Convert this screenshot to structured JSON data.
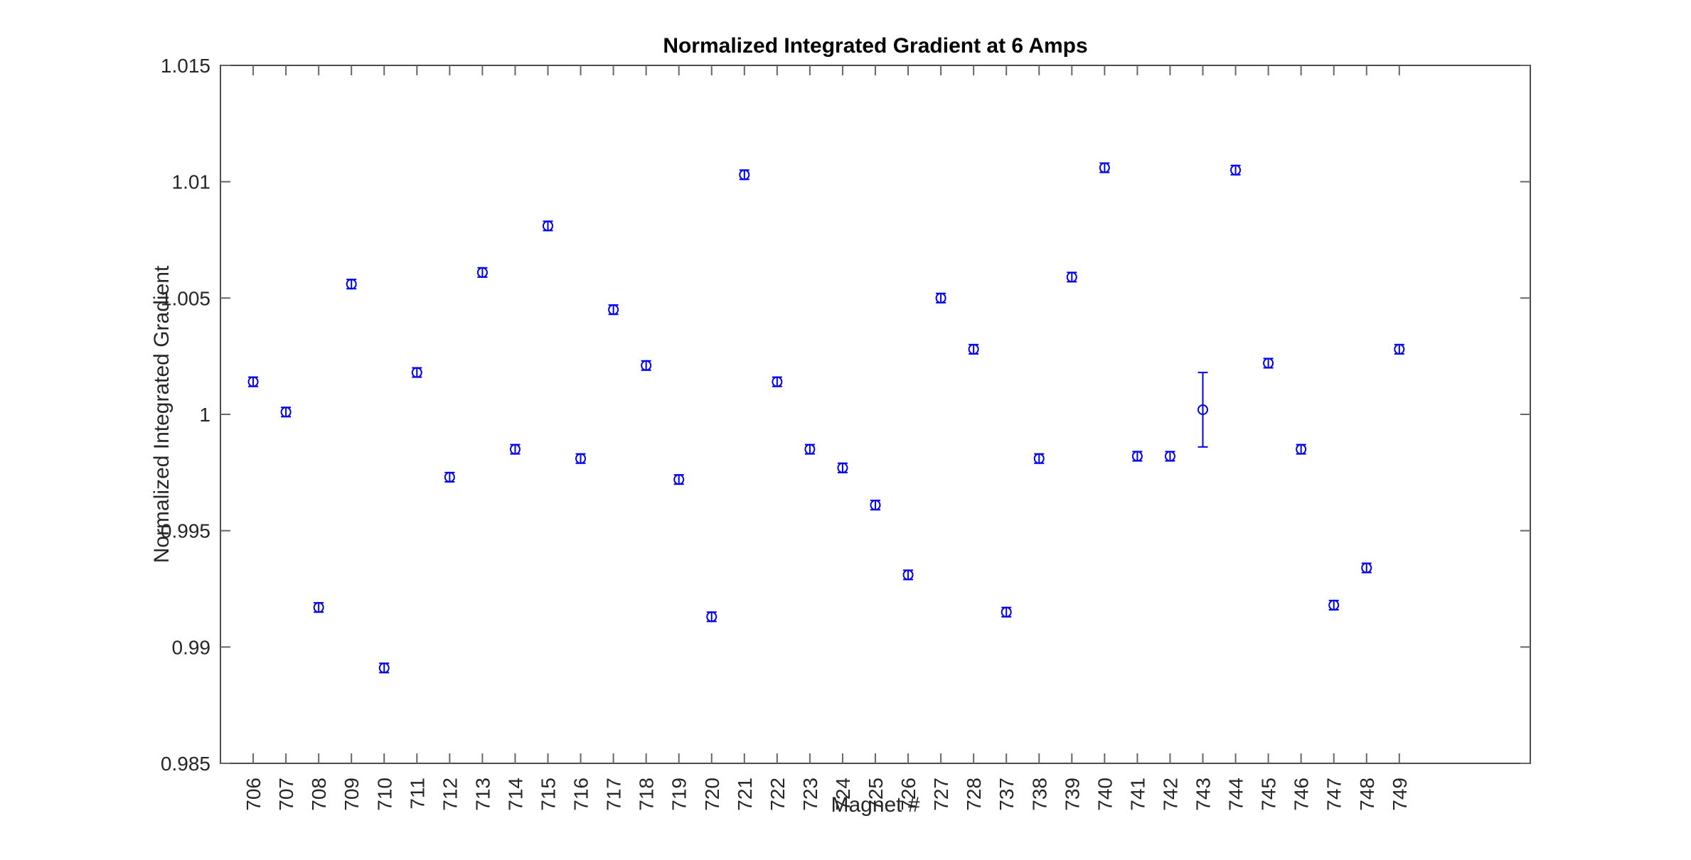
{
  "figure": {
    "title": "Normalized Integrated Gradient at 6 Amps",
    "xlabel": "Magnet #",
    "ylabel": "Normalized Integrated Gradient",
    "background_color": "#ffffff"
  },
  "chart_data": {
    "type": "scatter",
    "marker": "open-circle-with-error-bars",
    "title": "Normalized Integrated Gradient at 6 Amps",
    "xlabel": "Magnet #",
    "ylabel": "Normalized Integrated Gradient",
    "grid": false,
    "legend": "none",
    "categories": [
      "706",
      "707",
      "708",
      "709",
      "710",
      "711",
      "712",
      "713",
      "714",
      "715",
      "716",
      "717",
      "718",
      "719",
      "720",
      "721",
      "722",
      "723",
      "724",
      "725",
      "726",
      "727",
      "728",
      "737",
      "738",
      "739",
      "740",
      "741",
      "742",
      "743",
      "744",
      "745",
      "746",
      "747",
      "748",
      "749"
    ],
    "series": [
      {
        "name": "Normalized Integrated Gradient",
        "values": [
          1.0014,
          1.0001,
          0.9917,
          1.0056,
          0.9891,
          1.0018,
          0.9973,
          1.0061,
          0.9985,
          1.0081,
          0.9981,
          1.0045,
          1.0021,
          0.9972,
          0.9913,
          1.0103,
          1.0014,
          0.9985,
          0.9977,
          0.9961,
          0.9931,
          1.005,
          1.0028,
          0.9915,
          0.9981,
          1.0059,
          1.0106,
          0.9982,
          0.9982,
          1.0002,
          1.0105,
          1.0022,
          0.9985,
          0.9918,
          0.9934,
          1.0028
        ],
        "errors": [
          0.0002,
          0.0002,
          0.0002,
          0.0002,
          0.0002,
          0.0002,
          0.0002,
          0.0002,
          0.0002,
          0.0002,
          0.0002,
          0.0002,
          0.0002,
          0.0002,
          0.0002,
          0.0002,
          0.0002,
          0.0002,
          0.0002,
          0.0002,
          0.0002,
          0.0002,
          0.0002,
          0.0002,
          0.0002,
          0.0002,
          0.0002,
          0.0002,
          0.0002,
          0.0016,
          0.0002,
          0.0002,
          0.0002,
          0.0002,
          0.0002,
          0.0002
        ]
      }
    ],
    "ylim": [
      0.985,
      1.015
    ],
    "yticks": [
      1.015,
      1.01,
      1.005,
      1,
      0.995,
      0.99,
      0.985
    ],
    "ytick_labels": [
      "1.015",
      "1.01",
      "1.005",
      "1",
      "0.995",
      "0.99",
      "0.985"
    ],
    "x_index_range": [
      0,
      40
    ],
    "marker_color": "#0000EE",
    "axis_color": "#4d4d4d",
    "tick_color": "#666666",
    "text_color": "#262626"
  }
}
